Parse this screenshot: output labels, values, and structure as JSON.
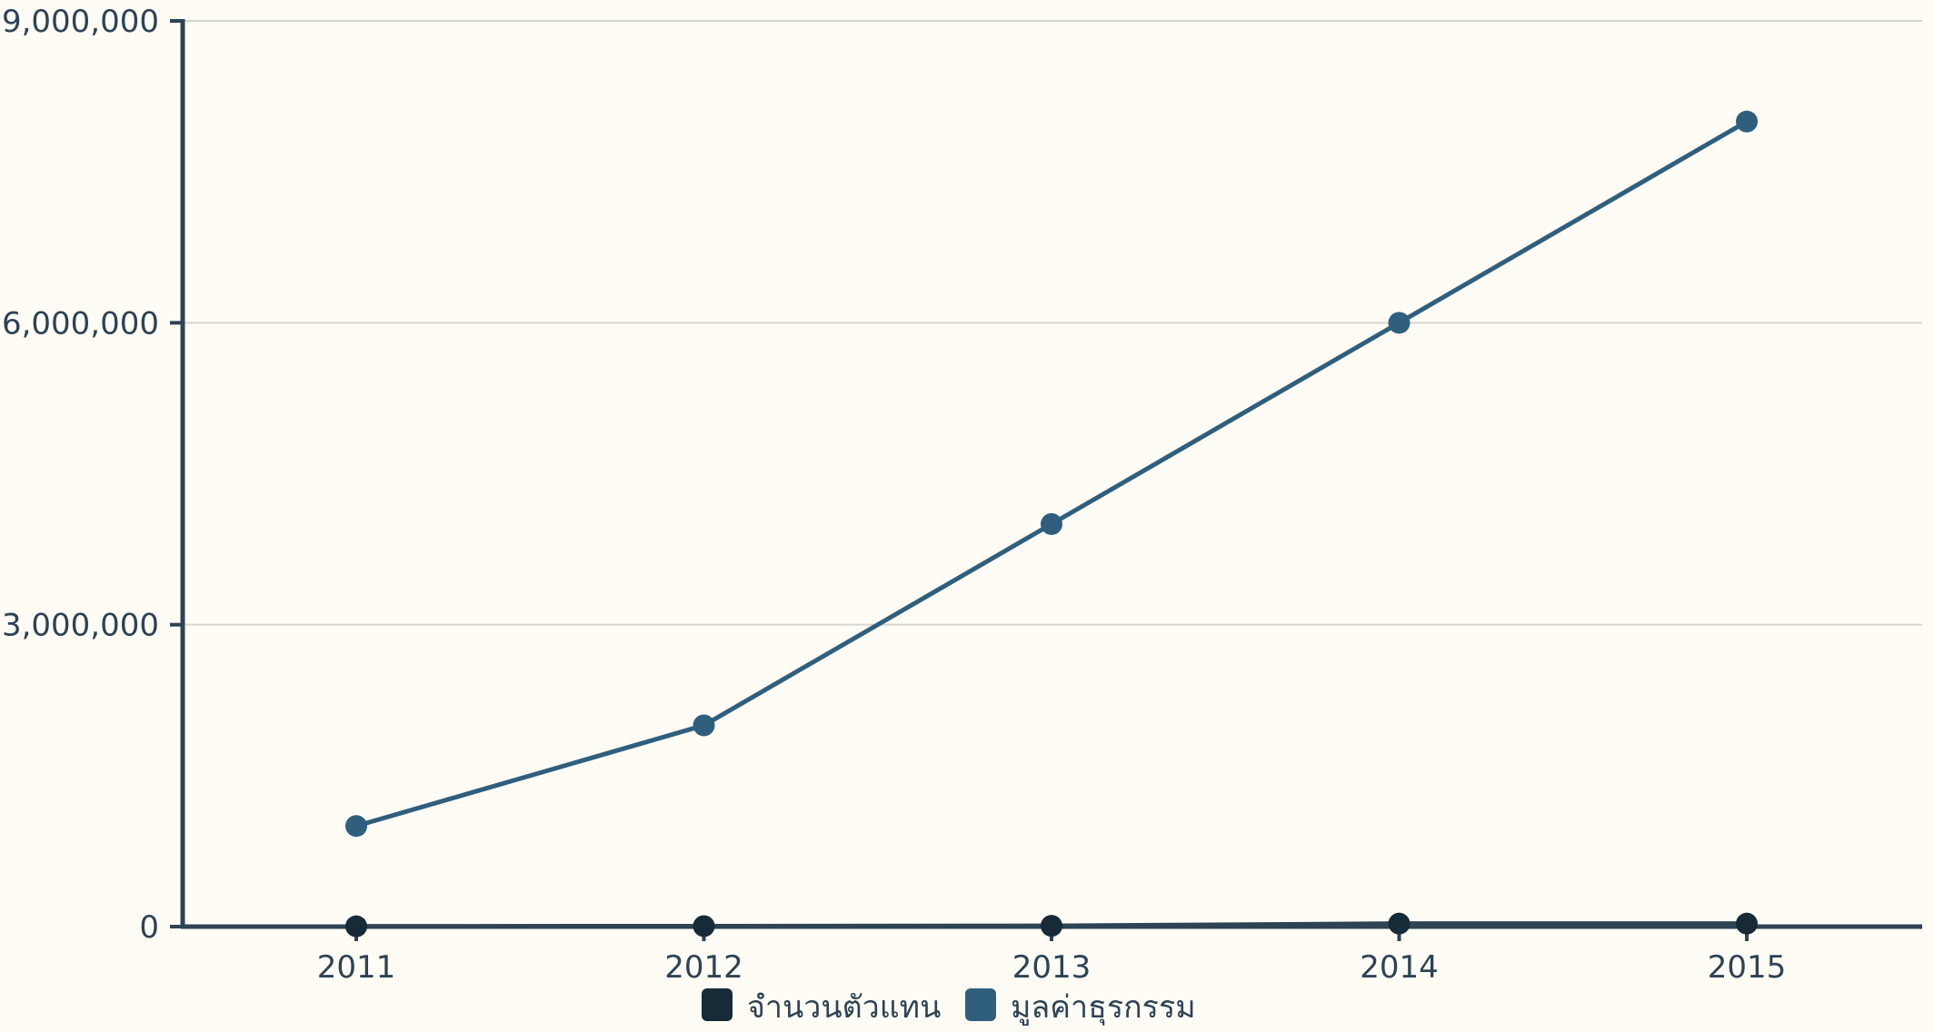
{
  "chart_data": {
    "type": "line",
    "title": "",
    "xlabel": "",
    "ylabel": "",
    "categories": [
      "2011",
      "2012",
      "2013",
      "2014",
      "2015"
    ],
    "ylim": [
      0,
      9000000
    ],
    "yticks": [
      0,
      3000000,
      6000000,
      9000000
    ],
    "ytick_labels": [
      "0",
      "3,000,000",
      "6,000,000",
      "9,000,000"
    ],
    "grid": true,
    "legend_position": "bottom",
    "series": [
      {
        "name": "จำนวนตัวแทน",
        "color": "#172a37",
        "values": [
          3000,
          5000,
          8000,
          30000,
          30000
        ]
      },
      {
        "name": "มูลค่าธุรกรรม",
        "color": "#2f5f7d",
        "values": [
          1000000,
          2000000,
          4000000,
          6000000,
          8000000
        ]
      }
    ]
  },
  "colors": {
    "background": "#fffcf5",
    "axis": "#2e4354",
    "grid": "#d5d5d2",
    "text": "#2e4354"
  }
}
